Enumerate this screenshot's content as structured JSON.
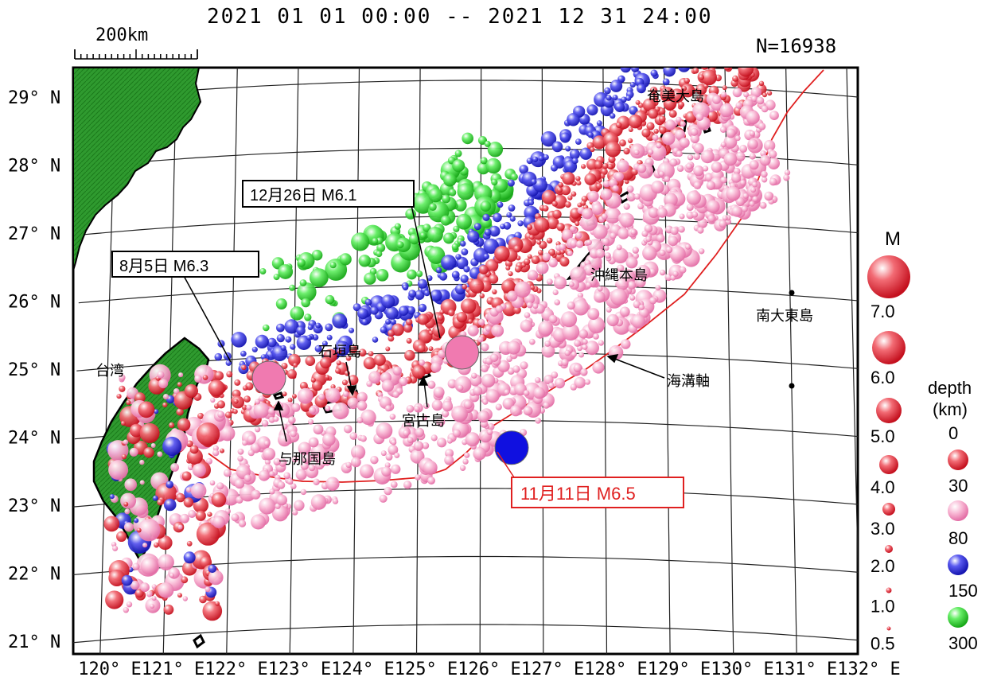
{
  "header": {
    "period": "2021 01 01 00:00 -- 2021 12 31 24:00",
    "count": "N=16938",
    "scale_bar": "200km"
  },
  "axes": {
    "lat_ticks": [
      "29° N",
      "28° N",
      "27° N",
      "26° N",
      "25° N",
      "24° N",
      "23° N",
      "22° N",
      "21° N"
    ],
    "lon_ticks": [
      "120° E",
      "121° E",
      "122° E",
      "123° E",
      "124° E",
      "125° E",
      "126° E",
      "127° E",
      "128° E",
      "129° E",
      "130° E",
      "131° E",
      "132° E"
    ]
  },
  "place_labels": {
    "taiwan": "台湾",
    "yonaguni": "与那国島",
    "ishigaki": "石垣島",
    "miyako": "宮古島",
    "okinawa": "沖縄本島",
    "amami": "奄美大島",
    "minamidaito": "南大東島",
    "trench_axis": "海溝軸"
  },
  "events": [
    {
      "label": "8月5日 M6.3",
      "lon": 122.6,
      "lat": 24.7,
      "depth_color": "#f07ab0"
    },
    {
      "label": "12月26日 M6.1",
      "lon": 125.7,
      "lat": 25.0,
      "depth_color": "#f07ab0"
    },
    {
      "label": "11月11日 M6.5",
      "lon": 126.5,
      "lat": 23.6,
      "depth_color": "#1010e0"
    }
  ],
  "legend": {
    "magnitude_title": "M",
    "magnitudes": [
      "7.0",
      "6.0",
      "5.0",
      "4.0",
      "3.0",
      "2.0",
      "1.0",
      "0.5"
    ],
    "depth_title_1": "depth",
    "depth_title_2": "(km)",
    "depths": [
      "0",
      "30",
      "80",
      "150",
      "300"
    ],
    "depth_colors": [
      "#e8303a",
      "#f7a0c8",
      "#3a3ae0",
      "#40e040"
    ]
  },
  "colors": {
    "land": "#1e8a1e",
    "trench": "#e02020",
    "shallow": "#e8303a",
    "mid": "#f7a0c8",
    "deep": "#3a3ae0",
    "verydeep": "#40e040"
  }
}
